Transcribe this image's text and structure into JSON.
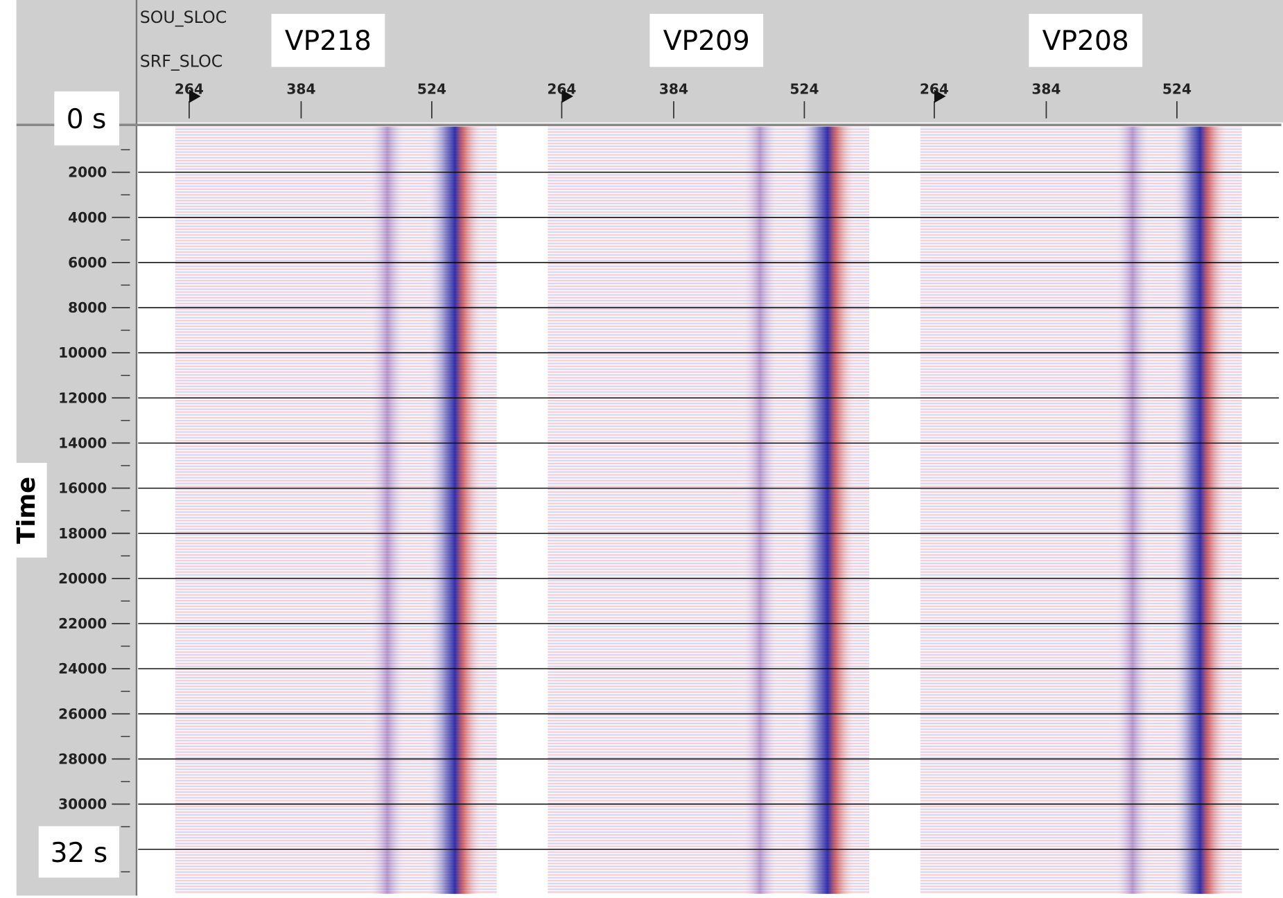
{
  "header": {
    "row_labels": [
      "SOU_SLOC",
      "SRF_SLOC"
    ]
  },
  "panels": [
    {
      "title": "VP218",
      "x_ticks": [
        264,
        384,
        524
      ]
    },
    {
      "title": "VP209",
      "x_ticks": [
        264,
        384,
        524
      ]
    },
    {
      "title": "VP208",
      "x_ticks": [
        264,
        384,
        524
      ]
    }
  ],
  "y_axis": {
    "label": "Time",
    "ticks": [
      2000,
      4000,
      6000,
      8000,
      10000,
      12000,
      14000,
      16000,
      18000,
      20000,
      22000,
      24000,
      26000,
      28000,
      30000
    ]
  },
  "annotations": {
    "top": "0 s",
    "bottom": "32 s"
  }
}
